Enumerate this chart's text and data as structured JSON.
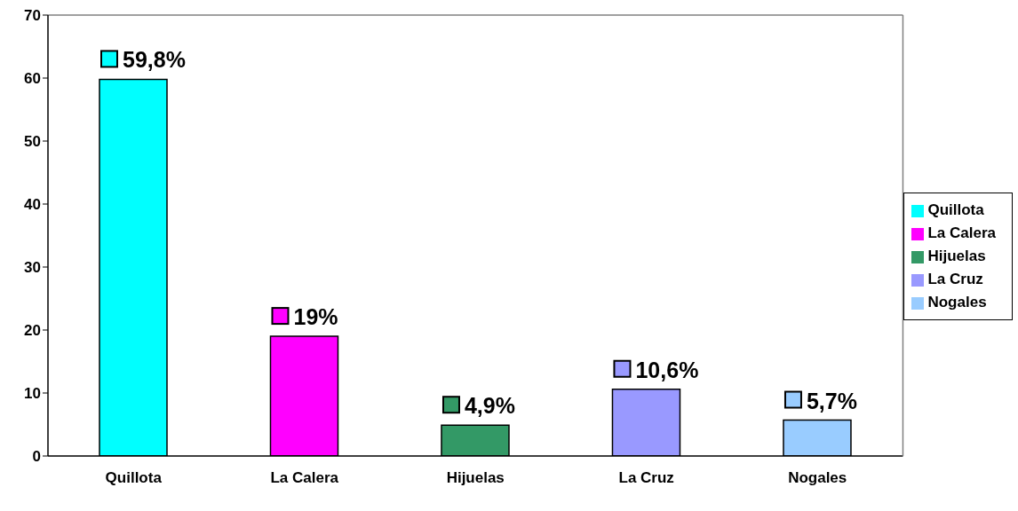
{
  "chart_data": {
    "type": "bar",
    "categories": [
      "Quillota",
      "La Calera",
      "Hijuelas",
      "La Cruz",
      "Nogales"
    ],
    "stacked": true,
    "series": [
      {
        "name": "Quillota",
        "color": "#00ffff",
        "values": [
          59.8,
          null,
          null,
          null,
          null
        ],
        "value_labels": [
          "59,8%",
          null,
          null,
          null,
          null
        ]
      },
      {
        "name": "La Calera",
        "color": "#ff00ff",
        "values": [
          null,
          19,
          null,
          null,
          null
        ],
        "value_labels": [
          null,
          "19%",
          null,
          null,
          null
        ]
      },
      {
        "name": "Hijuelas",
        "color": "#339966",
        "values": [
          null,
          null,
          4.9,
          null,
          null
        ],
        "value_labels": [
          null,
          null,
          "4,9%",
          null,
          null
        ]
      },
      {
        "name": "La Cruz",
        "color": "#9999ff",
        "values": [
          null,
          null,
          null,
          10.6,
          null
        ],
        "value_labels": [
          null,
          null,
          null,
          "10,6%",
          null
        ]
      },
      {
        "name": "Nogales",
        "color": "#99ccff",
        "values": [
          null,
          null,
          null,
          null,
          5.7
        ],
        "value_labels": [
          null,
          null,
          null,
          null,
          "5,7%"
        ]
      }
    ],
    "ylim": [
      0,
      70
    ],
    "yticks": [
      0,
      10,
      20,
      30,
      40,
      50,
      60,
      70
    ],
    "grid": false,
    "legend": "right"
  }
}
